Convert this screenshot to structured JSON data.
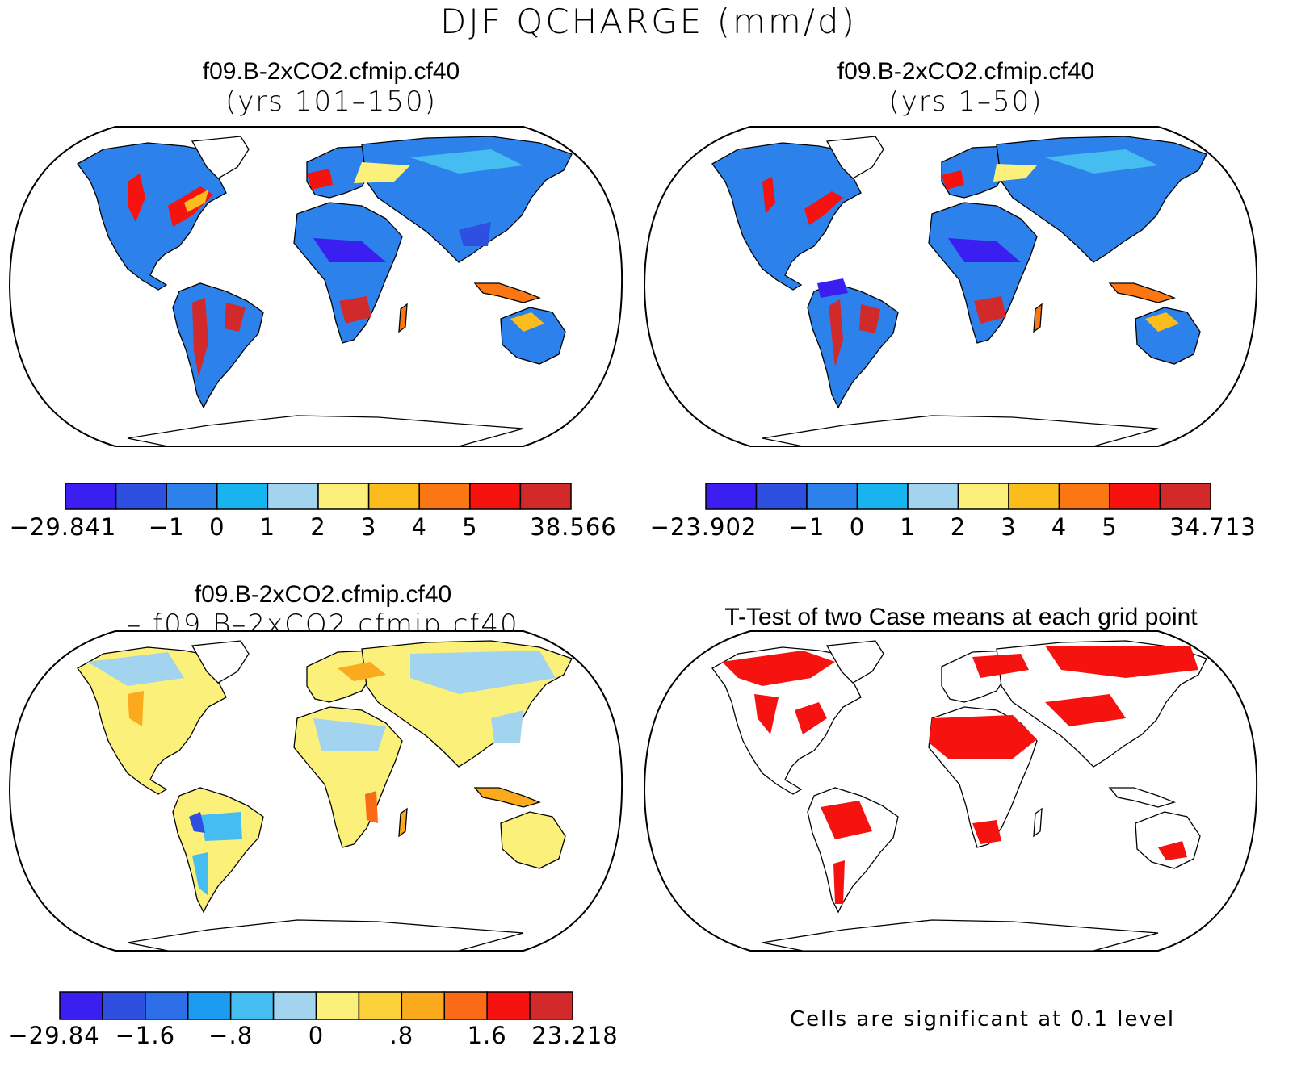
{
  "title": "DJF QCHARGE (mm/d)",
  "panels": [
    {
      "line1": "f09.B-2xCO2.cfmip.cf40",
      "line2": "(yrs 101–150)"
    },
    {
      "line1": "f09.B-2xCO2.cfmip.cf40",
      "line2": "(yrs 1–50)"
    },
    {
      "line1": "f09.B-2xCO2.cfmip.cf40",
      "line2": "– f09.B–2xCO2.cfmip.cf40"
    },
    {
      "line1": "T-Test of two Case means at each grid point",
      "line2": ""
    }
  ],
  "colorbars": [
    {
      "colors": [
        "#3a1ff0",
        "#2f4fe0",
        "#2c82ea",
        "#17b4f0",
        "#a3d4ef",
        "#fbf07a",
        "#fbbd1e",
        "#fb7714",
        "#f5120f",
        "#d22a2a"
      ],
      "labels": [
        "−29.841",
        "−1",
        "0",
        "1",
        "2",
        "3",
        "4",
        "5",
        "38.566"
      ]
    },
    {
      "colors": [
        "#3a1ff0",
        "#2f4fe0",
        "#2c82ea",
        "#17b4f0",
        "#a3d4ef",
        "#fbf07a",
        "#fbbd1e",
        "#fb7714",
        "#f5120f",
        "#d22a2a"
      ],
      "labels": [
        "−23.902",
        "−1",
        "0",
        "1",
        "2",
        "3",
        "4",
        "5",
        "34.713"
      ]
    },
    {
      "colors": [
        "#3a1ff0",
        "#2f4fe0",
        "#2c6fe8",
        "#1c9cf0",
        "#45bdf0",
        "#a3d4ef",
        "#fbf07a",
        "#fbd23a",
        "#fbaa1e",
        "#fb6a14",
        "#f5120f",
        "#d22a2a"
      ],
      "labels": [
        "−29.84",
        "−1.6",
        "−.8",
        "0",
        ".8",
        "1.6",
        "23.218"
      ]
    }
  ],
  "note": "Cells are significant at 0.1 level"
}
